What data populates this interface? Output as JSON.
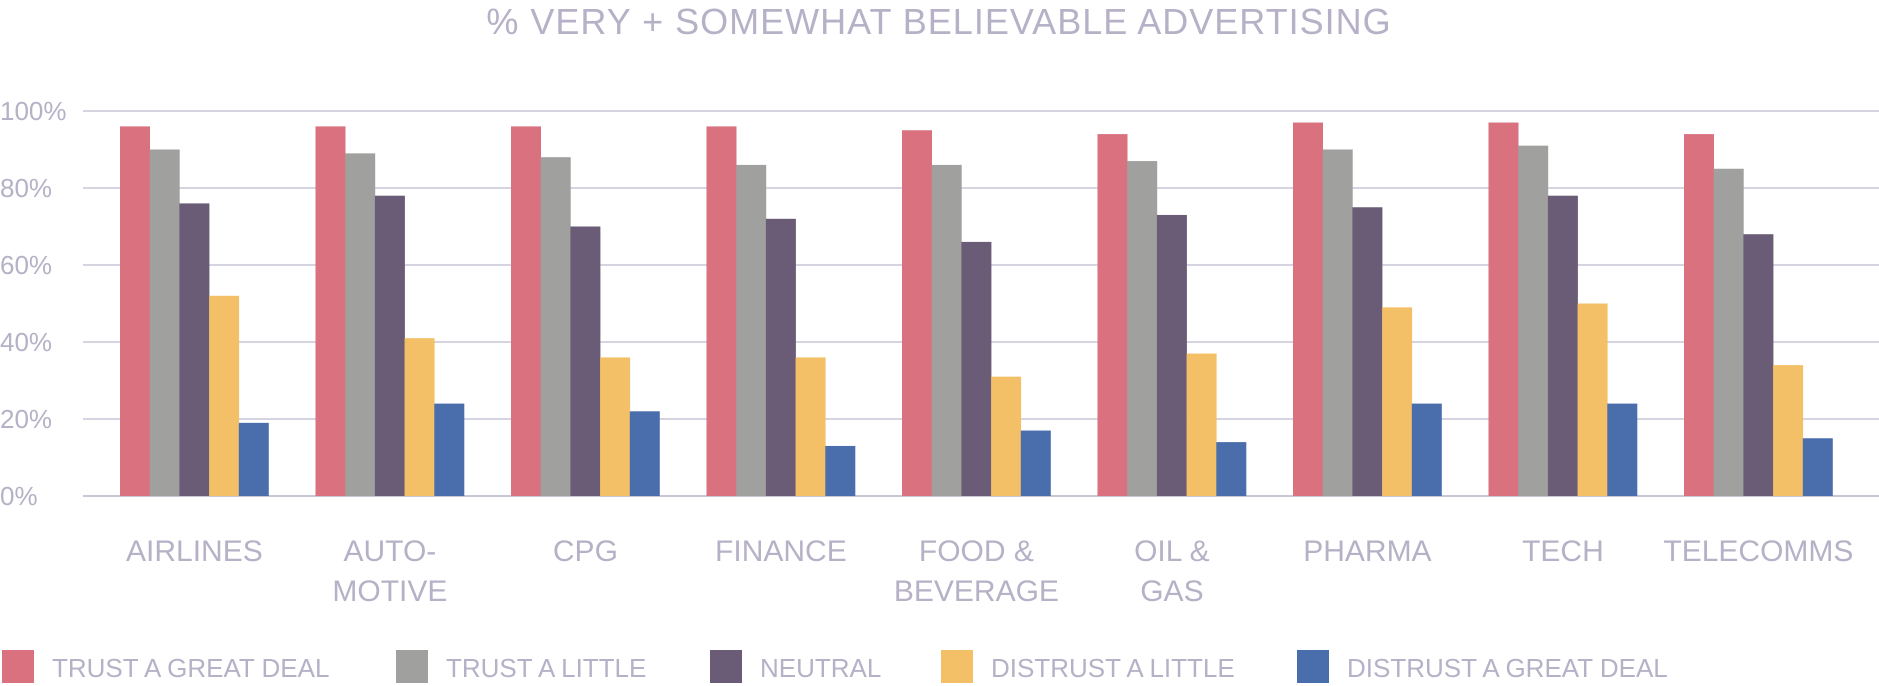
{
  "chart_data": {
    "type": "bar",
    "title": "% VERY + SOMEWHAT BELIEVABLE ADVERTISING",
    "xlabel": "",
    "ylabel": "",
    "ylim": [
      0,
      100
    ],
    "yticks": [
      0,
      20,
      40,
      60,
      80,
      100
    ],
    "ytick_labels": [
      "0%",
      "20%",
      "40%",
      "60%",
      "80%",
      "100%"
    ],
    "grid": true,
    "legend_position": "bottom",
    "categories": [
      [
        "AIRLINES"
      ],
      [
        "AUTO-",
        "MOTIVE"
      ],
      [
        "CPG"
      ],
      [
        "FINANCE"
      ],
      [
        "FOOD &",
        "BEVERAGE"
      ],
      [
        "OIL &",
        "GAS"
      ],
      [
        "PHARMA"
      ],
      [
        "TECH"
      ],
      [
        "TELECOMMS"
      ]
    ],
    "series": [
      {
        "name": "TRUST A GREAT DEAL",
        "color": "#d9717f",
        "values": [
          96,
          96,
          96,
          96,
          95,
          94,
          97,
          97,
          94
        ]
      },
      {
        "name": "TRUST A LITTLE",
        "color": "#a0a09f",
        "values": [
          90,
          89,
          88,
          86,
          86,
          87,
          90,
          91,
          85
        ]
      },
      {
        "name": "NEUTRAL",
        "color": "#6a5b76",
        "values": [
          76,
          78,
          70,
          72,
          66,
          73,
          75,
          78,
          68
        ]
      },
      {
        "name": "DISTRUST A LITTLE",
        "color": "#f3c068",
        "values": [
          52,
          41,
          36,
          36,
          31,
          37,
          49,
          50,
          34
        ]
      },
      {
        "name": "DISTRUST A GREAT DEAL",
        "color": "#4a6dac",
        "values": [
          19,
          24,
          22,
          13,
          17,
          14,
          24,
          24,
          15
        ]
      }
    ]
  }
}
